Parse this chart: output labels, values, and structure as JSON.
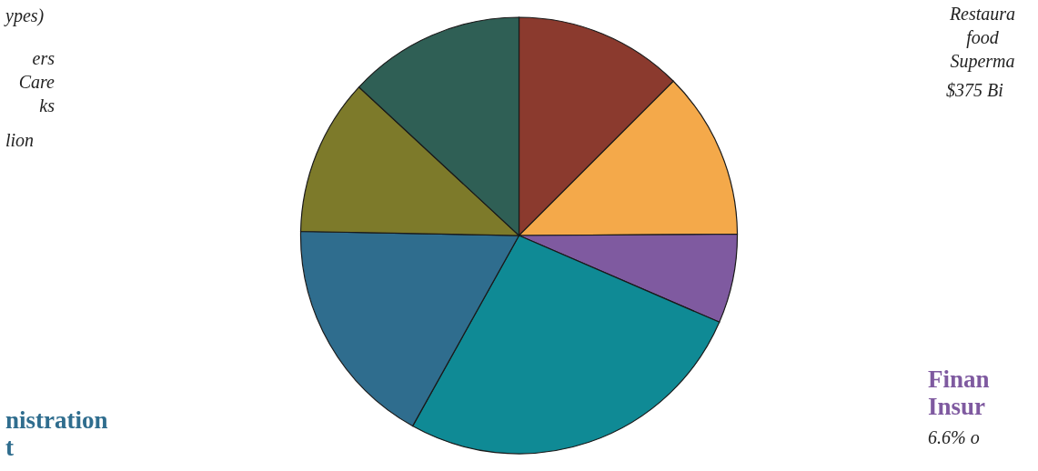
{
  "chart_data": {
    "type": "pie",
    "categories": [
      null,
      null,
      null,
      null,
      null,
      null,
      null
    ],
    "values": [
      12.5,
      12.4,
      6.6,
      26.6,
      17.2,
      11.6,
      13.1
    ],
    "colors": [
      "#8b3a2e",
      "#f4a94a",
      "#7f5aa0",
      "#0f8a95",
      "#2f6d8e",
      "#7d7a2a",
      "#2f5f55"
    ],
    "annotations": [
      "ypes)",
      "ers\nCare\nks",
      "lion",
      "Restaura\nfood\nSuperma",
      "$375 Bi",
      "nistration\nt",
      "Finan\nInsur",
      "6.6% o"
    ]
  }
}
